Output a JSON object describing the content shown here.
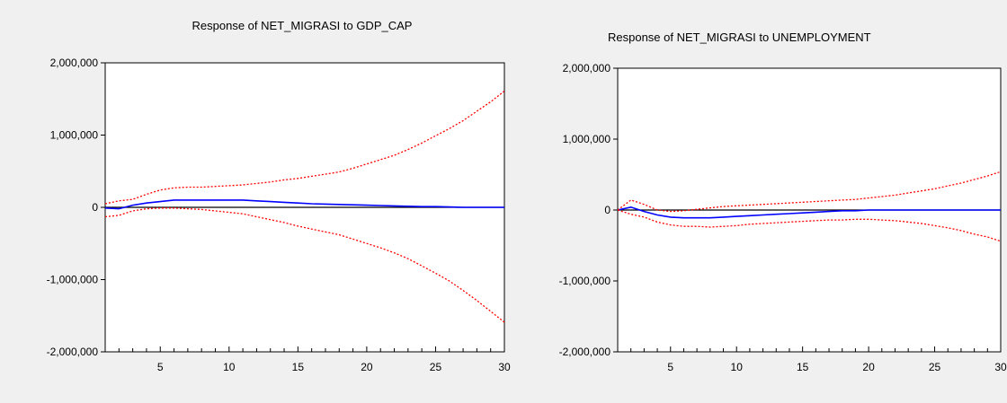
{
  "chart_data": [
    {
      "type": "line",
      "title": "Response of NET_MIGRASI to GDP_CAP",
      "xlabel": "",
      "ylabel": "",
      "xlim": [
        1,
        30
      ],
      "ylim": [
        -2000000,
        2000000
      ],
      "x_ticks": [
        5,
        10,
        15,
        20,
        25,
        30
      ],
      "y_ticks": [
        2000000,
        1000000,
        0,
        -1000000,
        -2000000
      ],
      "y_tick_labels": [
        "2,000,000",
        "1,000,000",
        "0",
        "-1,000,000",
        "-2,000,000"
      ],
      "grid": false,
      "legend": "none",
      "colors": {
        "response": "#0000ff",
        "bands": "#ff0000",
        "zero": "#000000"
      },
      "x": [
        1,
        2,
        3,
        4,
        5,
        6,
        7,
        8,
        9,
        10,
        11,
        12,
        13,
        14,
        15,
        16,
        17,
        18,
        19,
        20,
        21,
        22,
        23,
        24,
        25,
        26,
        27,
        28,
        29,
        30
      ],
      "series": [
        {
          "role": "response",
          "values": [
            -10000,
            -20000,
            30000,
            60000,
            80000,
            100000,
            100000,
            100000,
            100000,
            100000,
            100000,
            90000,
            80000,
            70000,
            60000,
            50000,
            45000,
            40000,
            35000,
            30000,
            25000,
            20000,
            15000,
            10000,
            10000,
            5000,
            0,
            0,
            0,
            0
          ]
        },
        {
          "role": "upper",
          "values": [
            50000,
            90000,
            110000,
            180000,
            240000,
            270000,
            280000,
            280000,
            290000,
            300000,
            310000,
            330000,
            350000,
            380000,
            400000,
            430000,
            460000,
            490000,
            540000,
            600000,
            660000,
            720000,
            800000,
            890000,
            990000,
            1090000,
            1200000,
            1330000,
            1460000,
            1610000
          ]
        },
        {
          "role": "lower",
          "values": [
            -130000,
            -110000,
            -50000,
            -20000,
            -10000,
            -10000,
            -20000,
            -30000,
            -50000,
            -70000,
            -90000,
            -130000,
            -170000,
            -210000,
            -260000,
            -300000,
            -340000,
            -380000,
            -440000,
            -500000,
            -560000,
            -630000,
            -710000,
            -810000,
            -910000,
            -1020000,
            -1150000,
            -1290000,
            -1440000,
            -1590000
          ]
        }
      ]
    },
    {
      "type": "line",
      "title": "Response of NET_MIGRASI to UNEMPLOYMENT",
      "xlabel": "",
      "ylabel": "",
      "xlim": [
        1,
        30
      ],
      "ylim": [
        -2000000,
        2000000
      ],
      "x_ticks": [
        5,
        10,
        15,
        20,
        25,
        30
      ],
      "y_ticks": [
        2000000,
        1000000,
        0,
        -1000000,
        -2000000
      ],
      "y_tick_labels": [
        "2,000,000",
        "1,000,000",
        "0",
        "-1,000,000",
        "-2,000,000"
      ],
      "grid": false,
      "legend": "none",
      "colors": {
        "response": "#0000ff",
        "bands": "#ff0000",
        "zero": "#000000"
      },
      "x": [
        1,
        2,
        3,
        4,
        5,
        6,
        7,
        8,
        9,
        10,
        11,
        12,
        13,
        14,
        15,
        16,
        17,
        18,
        19,
        20,
        21,
        22,
        23,
        24,
        25,
        26,
        27,
        28,
        29,
        30
      ],
      "series": [
        {
          "role": "response",
          "values": [
            0,
            40000,
            -20000,
            -70000,
            -100000,
            -110000,
            -110000,
            -110000,
            -100000,
            -90000,
            -80000,
            -70000,
            -60000,
            -50000,
            -40000,
            -30000,
            -20000,
            -10000,
            -10000,
            0,
            0,
            0,
            0,
            0,
            0,
            0,
            0,
            0,
            0,
            0
          ]
        },
        {
          "role": "upper",
          "values": [
            0,
            140000,
            80000,
            0,
            -20000,
            -10000,
            10000,
            30000,
            50000,
            60000,
            70000,
            80000,
            90000,
            100000,
            110000,
            120000,
            130000,
            140000,
            150000,
            170000,
            190000,
            210000,
            240000,
            270000,
            300000,
            340000,
            380000,
            430000,
            480000,
            540000
          ]
        },
        {
          "role": "lower",
          "values": [
            0,
            -60000,
            -100000,
            -170000,
            -210000,
            -230000,
            -230000,
            -240000,
            -230000,
            -220000,
            -200000,
            -190000,
            -180000,
            -170000,
            -160000,
            -150000,
            -140000,
            -140000,
            -130000,
            -130000,
            -140000,
            -150000,
            -170000,
            -190000,
            -220000,
            -250000,
            -290000,
            -340000,
            -380000,
            -440000
          ]
        }
      ]
    }
  ]
}
